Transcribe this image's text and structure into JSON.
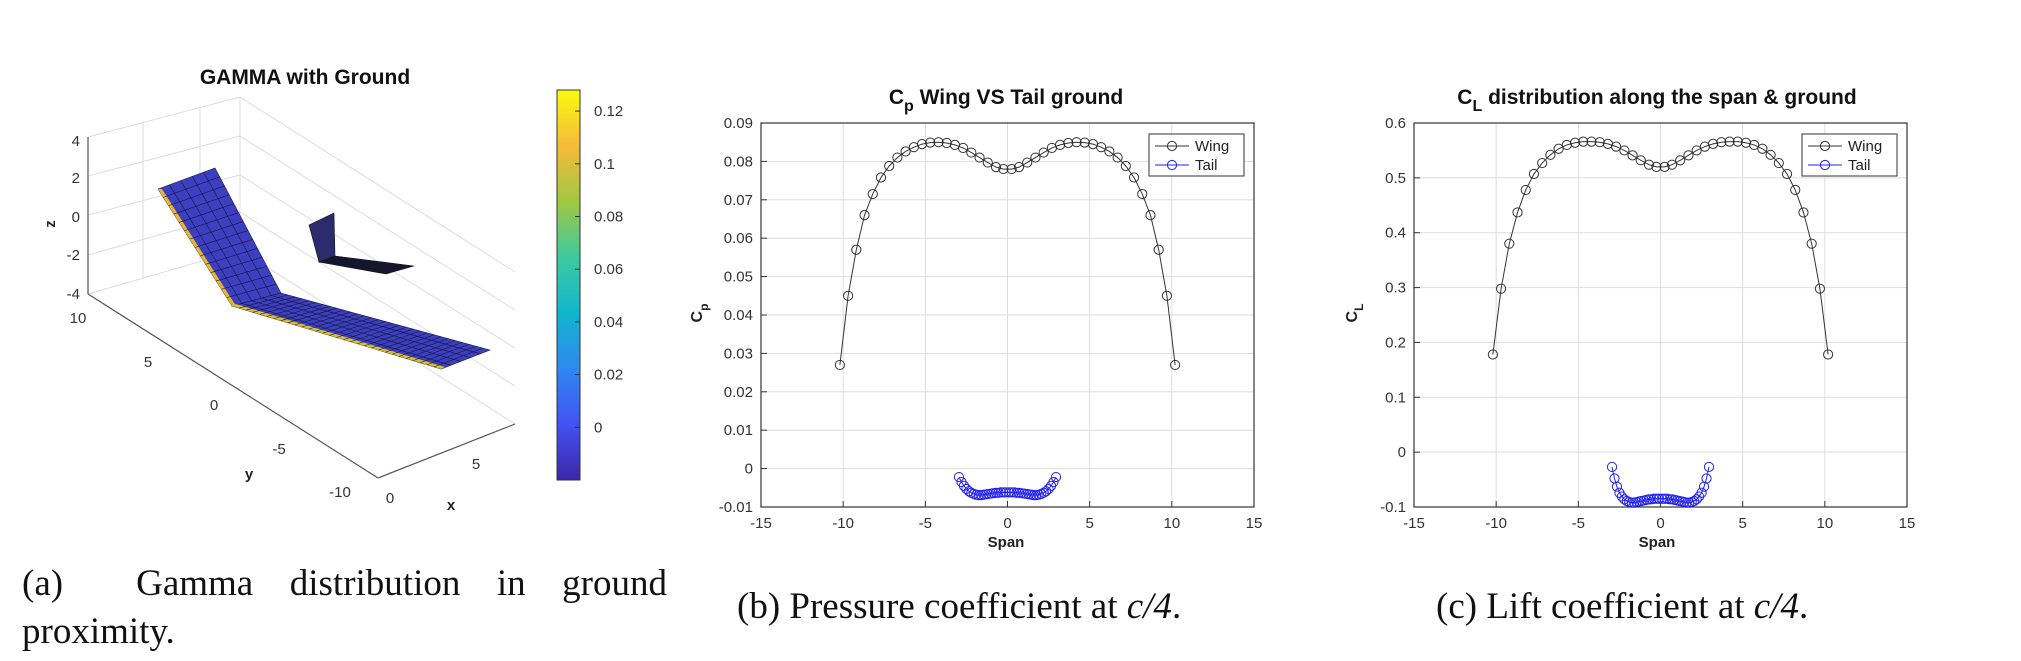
{
  "figure": {
    "captions": [
      {
        "label": "(a)",
        "text": "Gamma distribution in ground proximity."
      },
      {
        "label": "(b)",
        "text_before": "Pressure coefficient at ",
        "math": "c/4",
        "text_after": "."
      },
      {
        "label": "(c)",
        "text_before": "Lift coefficient at ",
        "math": "c/4",
        "text_after": "."
      }
    ]
  },
  "colors": {
    "wing": "#333333",
    "tail": "#2020ee",
    "grid": "#dddddd",
    "surface": "#3b3fc0",
    "colormap": [
      "#3e26a8",
      "#4253f2",
      "#2f88f0",
      "#11b6cd",
      "#3fc99e",
      "#a0c842",
      "#f6ba3a",
      "#f9fb0e"
    ]
  },
  "chart_data": [
    {
      "type": "surface3d",
      "title": "GAMMA with Ground",
      "xlabel": "x",
      "ylabel": "y",
      "zlabel": "z",
      "xticks": [
        "0",
        "5"
      ],
      "yticks": [
        "10",
        "5",
        "0",
        "-5",
        "-10"
      ],
      "zticks": [
        "4",
        "2",
        "0",
        "-2",
        "-4"
      ],
      "colorbar": {
        "min": -0.02,
        "max": 0.128,
        "ticks": [
          0.12,
          0.1,
          0.08,
          0.06,
          0.04,
          0.02,
          0
        ],
        "tick_labels": [
          "0.12",
          "0.1",
          "0.08",
          "0.06",
          "0.04",
          "0.02",
          "0"
        ]
      }
    },
    {
      "type": "line",
      "title_main": "C",
      "title_sub": "p",
      "title_rest": " Wing VS Tail ground",
      "xlabel": "Span",
      "ylabel_main": "C",
      "ylabel_sub": "p",
      "xlim": [
        -15,
        15
      ],
      "ylim": [
        -0.01,
        0.09
      ],
      "xticks": [
        -15,
        -10,
        -5,
        0,
        5,
        10,
        15
      ],
      "xtick_labels": [
        "-15",
        "-10",
        "-5",
        "0",
        "5",
        "10",
        "15"
      ],
      "yticks": [
        -0.01,
        0,
        0.01,
        0.02,
        0.03,
        0.04,
        0.05,
        0.06,
        0.07,
        0.08,
        0.09
      ],
      "ytick_labels": [
        "-0.01",
        "0",
        "0.01",
        "0.02",
        "0.03",
        "0.04",
        "0.05",
        "0.06",
        "0.07",
        "0.08",
        "0.09"
      ],
      "grid": true,
      "legend": "top-right",
      "series": [
        {
          "name": "Wing",
          "x": [
            -10.2,
            -9.7,
            -9.2,
            -8.7,
            -8.2,
            -7.7,
            -7.2,
            -6.7,
            -6.2,
            -5.7,
            -5.2,
            -4.7,
            -4.2,
            -3.7,
            -3.2,
            -2.7,
            -2.2,
            -1.7,
            -1.2,
            -0.7,
            -0.25,
            0.25,
            0.7,
            1.2,
            1.7,
            2.2,
            2.7,
            3.2,
            3.7,
            4.2,
            4.7,
            5.2,
            5.7,
            6.2,
            6.7,
            7.2,
            7.7,
            8.2,
            8.7,
            9.2,
            9.7,
            10.2
          ],
          "y": [
            0.027,
            0.045,
            0.057,
            0.066,
            0.0715,
            0.0758,
            0.0788,
            0.081,
            0.0826,
            0.0837,
            0.0845,
            0.0849,
            0.085,
            0.0848,
            0.0843,
            0.0835,
            0.0823,
            0.081,
            0.0797,
            0.0785,
            0.078,
            0.078,
            0.0785,
            0.0797,
            0.081,
            0.0823,
            0.0835,
            0.0843,
            0.0848,
            0.085,
            0.0849,
            0.0845,
            0.0837,
            0.0826,
            0.081,
            0.0788,
            0.0758,
            0.0715,
            0.066,
            0.057,
            0.045,
            0.027
          ]
        },
        {
          "name": "Tail",
          "x": [
            -2.95,
            -2.8,
            -2.65,
            -2.5,
            -2.35,
            -2.2,
            -2.05,
            -1.9,
            -1.75,
            -1.6,
            -1.45,
            -1.3,
            -1.15,
            -1.0,
            -0.85,
            -0.7,
            -0.55,
            -0.4,
            -0.25,
            -0.1,
            0.1,
            0.25,
            0.4,
            0.55,
            0.7,
            0.85,
            1.0,
            1.15,
            1.3,
            1.45,
            1.6,
            1.75,
            1.9,
            2.05,
            2.2,
            2.35,
            2.5,
            2.65,
            2.8,
            2.95
          ],
          "y": [
            -0.0022,
            -0.0035,
            -0.0045,
            -0.0053,
            -0.0059,
            -0.0063,
            -0.0066,
            -0.0068,
            -0.0069,
            -0.0069,
            -0.0068,
            -0.0067,
            -0.0066,
            -0.0065,
            -0.0064,
            -0.0063,
            -0.0063,
            -0.0062,
            -0.0062,
            -0.0062,
            -0.0062,
            -0.0062,
            -0.0062,
            -0.0063,
            -0.0063,
            -0.0064,
            -0.0065,
            -0.0066,
            -0.0067,
            -0.0068,
            -0.0069,
            -0.0069,
            -0.0068,
            -0.0066,
            -0.0063,
            -0.0059,
            -0.0053,
            -0.0045,
            -0.0035,
            -0.0022
          ]
        }
      ]
    },
    {
      "type": "line",
      "title_main": "C",
      "title_sub": "L",
      "title_rest": " distribution along the span & ground",
      "xlabel": "Span",
      "ylabel_main": "C",
      "ylabel_sub": "L",
      "xlim": [
        -15,
        15
      ],
      "ylim": [
        -0.1,
        0.6
      ],
      "xticks": [
        -15,
        -10,
        -5,
        0,
        5,
        10,
        15
      ],
      "xtick_labels": [
        "-15",
        "-10",
        "-5",
        "0",
        "5",
        "10",
        "15"
      ],
      "yticks": [
        -0.1,
        0,
        0.1,
        0.2,
        0.3,
        0.4,
        0.5,
        0.6
      ],
      "ytick_labels": [
        "-0.1",
        "0",
        "0.1",
        "0.2",
        "0.3",
        "0.4",
        "0.5",
        "0.6"
      ],
      "grid": true,
      "legend": "top-right",
      "series": [
        {
          "name": "Wing",
          "x": [
            -10.2,
            -9.7,
            -9.2,
            -8.7,
            -8.2,
            -7.7,
            -7.2,
            -6.7,
            -6.2,
            -5.7,
            -5.2,
            -4.7,
            -4.2,
            -3.7,
            -3.2,
            -2.7,
            -2.2,
            -1.7,
            -1.2,
            -0.7,
            -0.25,
            0.25,
            0.7,
            1.2,
            1.7,
            2.2,
            2.7,
            3.2,
            3.7,
            4.2,
            4.7,
            5.2,
            5.7,
            6.2,
            6.7,
            7.2,
            7.7,
            8.2,
            8.7,
            9.2,
            9.7,
            10.2
          ],
          "y": [
            0.178,
            0.298,
            0.38,
            0.437,
            0.478,
            0.507,
            0.527,
            0.542,
            0.553,
            0.56,
            0.564,
            0.566,
            0.566,
            0.565,
            0.562,
            0.557,
            0.55,
            0.541,
            0.532,
            0.524,
            0.52,
            0.52,
            0.524,
            0.532,
            0.541,
            0.55,
            0.557,
            0.562,
            0.565,
            0.566,
            0.566,
            0.564,
            0.56,
            0.553,
            0.542,
            0.527,
            0.507,
            0.478,
            0.437,
            0.38,
            0.298,
            0.178
          ]
        },
        {
          "name": "Tail",
          "x": [
            -2.95,
            -2.8,
            -2.65,
            -2.5,
            -2.35,
            -2.2,
            -2.05,
            -1.9,
            -1.75,
            -1.6,
            -1.45,
            -1.3,
            -1.15,
            -1.0,
            -0.85,
            -0.7,
            -0.55,
            -0.4,
            -0.25,
            -0.1,
            0.1,
            0.25,
            0.4,
            0.55,
            0.7,
            0.85,
            1.0,
            1.15,
            1.3,
            1.45,
            1.6,
            1.75,
            1.9,
            2.05,
            2.2,
            2.35,
            2.5,
            2.65,
            2.8,
            2.95
          ],
          "y": [
            -0.027,
            -0.048,
            -0.063,
            -0.074,
            -0.081,
            -0.086,
            -0.089,
            -0.091,
            -0.092,
            -0.092,
            -0.091,
            -0.09,
            -0.089,
            -0.088,
            -0.087,
            -0.086,
            -0.086,
            -0.085,
            -0.085,
            -0.085,
            -0.085,
            -0.085,
            -0.085,
            -0.086,
            -0.086,
            -0.087,
            -0.088,
            -0.089,
            -0.09,
            -0.091,
            -0.092,
            -0.092,
            -0.091,
            -0.089,
            -0.086,
            -0.081,
            -0.074,
            -0.063,
            -0.048,
            -0.027
          ]
        }
      ]
    }
  ]
}
